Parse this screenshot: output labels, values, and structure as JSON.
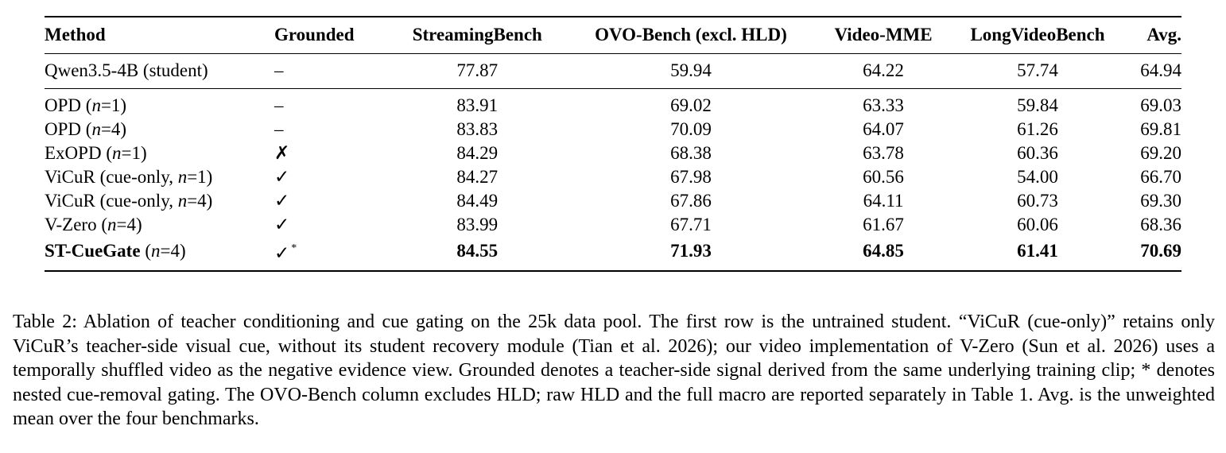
{
  "table": {
    "columns": [
      "Method",
      "Grounded",
      "StreamingBench",
      "OVO-Bench (excl. HLD)",
      "Video-MME",
      "LongVideoBench",
      "Avg."
    ],
    "student_row": {
      "method": "Qwen3.5-4B (student)",
      "grounded": "–",
      "values": [
        "77.87",
        "59.94",
        "64.22",
        "57.74",
        "64.94"
      ]
    },
    "rows": [
      {
        "method_name": "OPD",
        "method_suffix": "(",
        "method_var": "n",
        "method_tail": "=1)",
        "grounded": "–",
        "values": [
          "83.91",
          "69.02",
          "63.33",
          "59.84",
          "69.03"
        ]
      },
      {
        "method_name": "OPD",
        "method_suffix": "(",
        "method_var": "n",
        "method_tail": "=4)",
        "grounded": "–",
        "values": [
          "83.83",
          "70.09",
          "64.07",
          "61.26",
          "69.81"
        ]
      },
      {
        "method_name": "ExOPD",
        "method_suffix": "(",
        "method_var": "n",
        "method_tail": "=1)",
        "grounded": "✗",
        "values": [
          "84.29",
          "68.38",
          "63.78",
          "60.36",
          "69.20"
        ]
      },
      {
        "method_name": "ViCuR",
        "method_suffix": "(cue-only, ",
        "method_var": "n",
        "method_tail": "=1)",
        "grounded": "✓",
        "values": [
          "84.27",
          "67.98",
          "60.56",
          "54.00",
          "66.70"
        ]
      },
      {
        "method_name": "ViCuR",
        "method_suffix": "(cue-only, ",
        "method_var": "n",
        "method_tail": "=4)",
        "grounded": "✓",
        "values": [
          "84.49",
          "67.86",
          "64.11",
          "60.73",
          "69.30"
        ]
      },
      {
        "method_name": "V-Zero",
        "method_suffix": "(",
        "method_var": "n",
        "method_tail": "=4)",
        "grounded": "✓",
        "values": [
          "83.99",
          "67.71",
          "61.67",
          "60.06",
          "68.36"
        ]
      }
    ],
    "final_row": {
      "method_name": "ST-CueGate",
      "method_suffix": "(",
      "method_var": "n",
      "method_tail": "=4)",
      "grounded": "✓",
      "grounded_sup": "*",
      "values": [
        "84.55",
        "71.93",
        "64.85",
        "61.41",
        "70.69"
      ]
    }
  },
  "caption": "Table 2: Ablation of teacher conditioning and cue gating on the 25k data pool. The first row is the untrained student. “ViCuR (cue-only)” retains only ViCuR’s teacher-side visual cue, without its student recovery module (Tian et al. 2026); our video implementation of V-Zero (Sun et al. 2026) uses a temporally shuffled video as the negative evidence view. Grounded denotes a teacher-side signal derived from the same underlying training clip; * denotes nested cue-removal gating. The OVO-Bench column excludes HLD; raw HLD and the full macro are reported separately in Table 1. Avg. is the unweighted mean over the four benchmarks."
}
